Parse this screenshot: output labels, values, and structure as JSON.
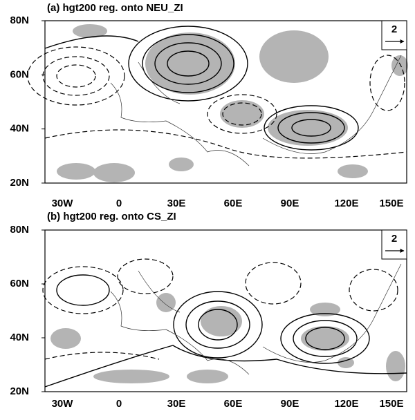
{
  "panels": [
    {
      "title": "(a) hgt200 reg. onto NEU_ZI",
      "reference_vector": "2"
    },
    {
      "title": "(b) hgt200 reg. onto CS_ZI",
      "reference_vector": "2"
    }
  ],
  "lat_labels": [
    "80N",
    "60N",
    "40N",
    "20N"
  ],
  "lon_labels": [
    "30W",
    "0",
    "30E",
    "60E",
    "90E",
    "120E",
    "150E"
  ]
}
